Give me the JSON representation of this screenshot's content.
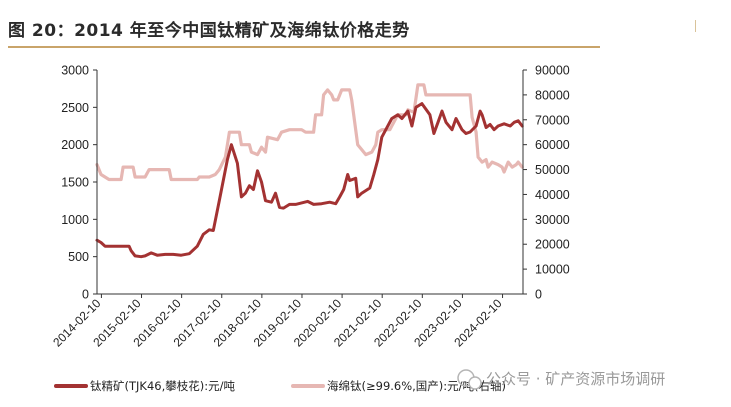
{
  "title": "图 20：2014 年至今中国钛精矿及海绵钛价格走势",
  "watermark": "公众号 · 矿产资源市场调研",
  "colors": {
    "series1": "#a33232",
    "series2": "#e6b7b3",
    "rule": "#c9a46a",
    "axis": "#333333"
  },
  "chart_data": {
    "type": "line",
    "x_ticks": [
      "2014-02-10",
      "2015-02-10",
      "2016-02-10",
      "2017-02-10",
      "2018-02-10",
      "2019-02-10",
      "2020-02-10",
      "2021-02-10",
      "2022-02-10",
      "2023-02-10",
      "2024-02-10"
    ],
    "x_range": [
      2014.0,
      2024.62
    ],
    "y_left": {
      "range": [
        0,
        3000
      ],
      "ticks": [
        0,
        500,
        1000,
        1500,
        2000,
        2500,
        3000
      ]
    },
    "y_right": {
      "range": [
        0,
        90000
      ],
      "ticks": [
        0,
        10000,
        20000,
        30000,
        40000,
        50000,
        60000,
        70000,
        80000,
        90000
      ]
    },
    "series": [
      {
        "name": "钛精矿(TJK46,攀枝花):元/吨",
        "axis": "left",
        "points": [
          [
            2014.0,
            720
          ],
          [
            2014.1,
            690
          ],
          [
            2014.2,
            640
          ],
          [
            2014.4,
            640
          ],
          [
            2014.6,
            640
          ],
          [
            2014.8,
            640
          ],
          [
            2014.85,
            580
          ],
          [
            2014.95,
            510
          ],
          [
            2015.1,
            500
          ],
          [
            2015.2,
            510
          ],
          [
            2015.35,
            550
          ],
          [
            2015.5,
            520
          ],
          [
            2015.7,
            530
          ],
          [
            2015.9,
            530
          ],
          [
            2016.1,
            520
          ],
          [
            2016.3,
            540
          ],
          [
            2016.5,
            640
          ],
          [
            2016.65,
            800
          ],
          [
            2016.8,
            860
          ],
          [
            2016.9,
            850
          ],
          [
            2017.05,
            1250
          ],
          [
            2017.25,
            1800
          ],
          [
            2017.35,
            2000
          ],
          [
            2017.5,
            1750
          ],
          [
            2017.6,
            1300
          ],
          [
            2017.7,
            1350
          ],
          [
            2017.8,
            1450
          ],
          [
            2017.9,
            1400
          ],
          [
            2018.0,
            1650
          ],
          [
            2018.1,
            1500
          ],
          [
            2018.2,
            1250
          ],
          [
            2018.35,
            1230
          ],
          [
            2018.45,
            1350
          ],
          [
            2018.55,
            1160
          ],
          [
            2018.65,
            1150
          ],
          [
            2018.8,
            1200
          ],
          [
            2018.95,
            1200
          ],
          [
            2019.1,
            1220
          ],
          [
            2019.25,
            1240
          ],
          [
            2019.4,
            1200
          ],
          [
            2019.6,
            1210
          ],
          [
            2019.8,
            1230
          ],
          [
            2019.95,
            1210
          ],
          [
            2020.05,
            1300
          ],
          [
            2020.15,
            1400
          ],
          [
            2020.25,
            1600
          ],
          [
            2020.3,
            1520
          ],
          [
            2020.45,
            1550
          ],
          [
            2020.5,
            1300
          ],
          [
            2020.6,
            1350
          ],
          [
            2020.8,
            1420
          ],
          [
            2020.9,
            1600
          ],
          [
            2021.0,
            1800
          ],
          [
            2021.1,
            2100
          ],
          [
            2021.2,
            2200
          ],
          [
            2021.35,
            2350
          ],
          [
            2021.5,
            2400
          ],
          [
            2021.6,
            2350
          ],
          [
            2021.75,
            2450
          ],
          [
            2021.85,
            2250
          ],
          [
            2021.95,
            2500
          ],
          [
            2022.1,
            2550
          ],
          [
            2022.3,
            2400
          ],
          [
            2022.4,
            2150
          ],
          [
            2022.5,
            2300
          ],
          [
            2022.6,
            2450
          ],
          [
            2022.7,
            2300
          ],
          [
            2022.85,
            2200
          ],
          [
            2022.95,
            2350
          ],
          [
            2023.1,
            2200
          ],
          [
            2023.2,
            2150
          ],
          [
            2023.3,
            2170
          ],
          [
            2023.45,
            2250
          ],
          [
            2023.55,
            2450
          ],
          [
            2023.6,
            2400
          ],
          [
            2023.7,
            2230
          ],
          [
            2023.8,
            2270
          ],
          [
            2023.9,
            2200
          ],
          [
            2024.0,
            2250
          ],
          [
            2024.15,
            2280
          ],
          [
            2024.3,
            2250
          ],
          [
            2024.4,
            2300
          ],
          [
            2024.5,
            2320
          ],
          [
            2024.6,
            2250
          ]
        ]
      },
      {
        "name": "海绵钛(≥99.6%,国产):元/吨(右轴)",
        "axis": "right",
        "points": [
          [
            2014.0,
            52000
          ],
          [
            2014.1,
            48000
          ],
          [
            2014.3,
            46000
          ],
          [
            2014.6,
            46000
          ],
          [
            2014.65,
            51000
          ],
          [
            2014.9,
            51000
          ],
          [
            2014.95,
            47000
          ],
          [
            2015.2,
            47000
          ],
          [
            2015.3,
            50000
          ],
          [
            2015.8,
            50000
          ],
          [
            2015.85,
            46000
          ],
          [
            2016.5,
            46000
          ],
          [
            2016.55,
            47000
          ],
          [
            2016.8,
            47000
          ],
          [
            2016.95,
            48000
          ],
          [
            2017.05,
            50000
          ],
          [
            2017.2,
            55000
          ],
          [
            2017.3,
            65000
          ],
          [
            2017.55,
            65000
          ],
          [
            2017.6,
            60000
          ],
          [
            2017.8,
            60000
          ],
          [
            2017.85,
            57000
          ],
          [
            2018.0,
            56000
          ],
          [
            2018.1,
            59000
          ],
          [
            2018.2,
            57000
          ],
          [
            2018.25,
            63000
          ],
          [
            2018.5,
            62000
          ],
          [
            2018.6,
            65000
          ],
          [
            2018.8,
            66000
          ],
          [
            2019.0,
            66000
          ],
          [
            2019.1,
            66000
          ],
          [
            2019.2,
            65000
          ],
          [
            2019.4,
            65000
          ],
          [
            2019.45,
            72000
          ],
          [
            2019.6,
            72000
          ],
          [
            2019.65,
            80000
          ],
          [
            2019.75,
            82000
          ],
          [
            2019.85,
            80000
          ],
          [
            2019.9,
            78000
          ],
          [
            2020.0,
            78000
          ],
          [
            2020.1,
            82000
          ],
          [
            2020.3,
            82000
          ],
          [
            2020.35,
            78000
          ],
          [
            2020.4,
            72000
          ],
          [
            2020.5,
            60000
          ],
          [
            2020.6,
            58000
          ],
          [
            2020.7,
            56000
          ],
          [
            2020.85,
            57000
          ],
          [
            2020.95,
            60000
          ],
          [
            2021.0,
            65000
          ],
          [
            2021.1,
            66000
          ],
          [
            2021.3,
            66000
          ],
          [
            2021.5,
            72000
          ],
          [
            2021.7,
            72000
          ],
          [
            2021.75,
            74000
          ],
          [
            2021.9,
            73000
          ],
          [
            2022.0,
            84000
          ],
          [
            2022.15,
            84000
          ],
          [
            2022.2,
            80000
          ],
          [
            2022.5,
            80000
          ],
          [
            2022.7,
            80000
          ],
          [
            2023.0,
            80000
          ],
          [
            2023.3,
            80000
          ],
          [
            2023.35,
            71000
          ],
          [
            2023.45,
            65000
          ],
          [
            2023.5,
            55000
          ],
          [
            2023.6,
            53000
          ],
          [
            2023.7,
            54000
          ],
          [
            2023.75,
            51000
          ],
          [
            2023.85,
            53000
          ],
          [
            2024.0,
            52000
          ],
          [
            2024.1,
            51000
          ],
          [
            2024.15,
            49000
          ],
          [
            2024.25,
            53000
          ],
          [
            2024.35,
            51000
          ],
          [
            2024.45,
            52000
          ],
          [
            2024.5,
            53000
          ],
          [
            2024.6,
            51000
          ]
        ]
      }
    ],
    "legend": [
      {
        "label": "钛精矿(TJK46,攀枝花):元/吨"
      },
      {
        "label": "海绵钛(≥99.6%,国产):元/吨(右轴)"
      }
    ]
  }
}
